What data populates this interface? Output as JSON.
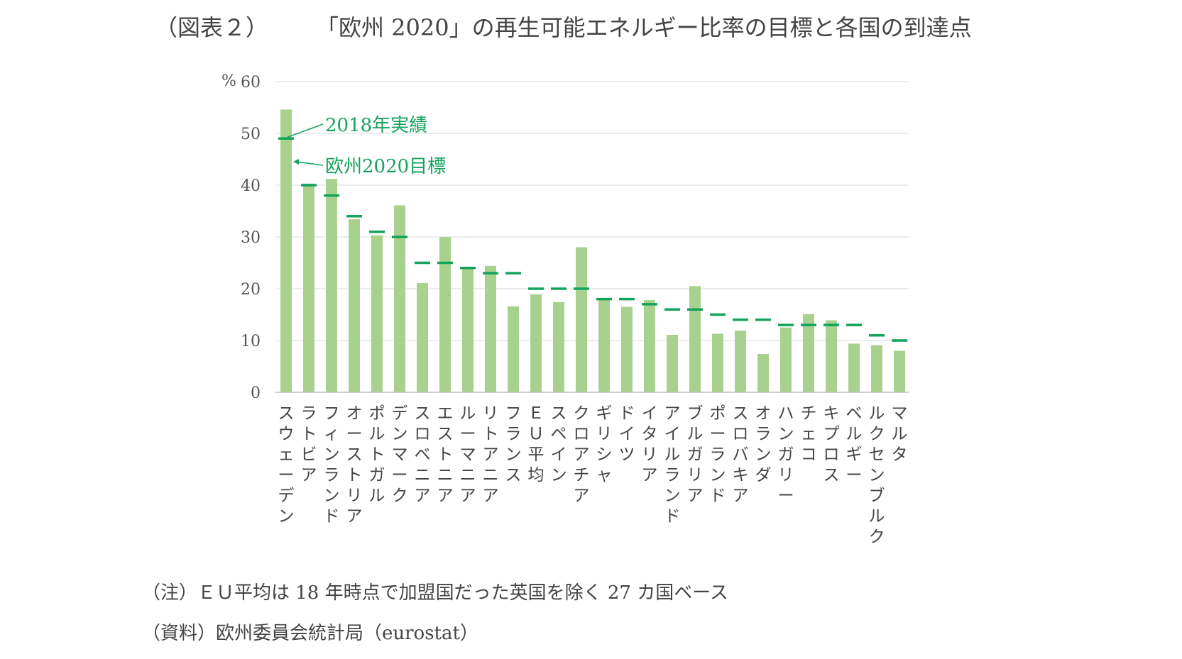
{
  "figure_label": "（図表２）",
  "title": "「欧州 2020」の再生可能エネルギー比率の目標と各国の到達点",
  "notes": {
    "note": "（注）ＥＵ平均は 18 年時点で加盟国だった英国を除く 27 カ国ベース",
    "source": "（資料）欧州委員会統計局（eurostat）"
  },
  "chart_data": {
    "type": "bar",
    "title": "「欧州 2020」の再生可能エネルギー比率の目標と各国の到達点",
    "ylabel": "%",
    "ylim": [
      0,
      60
    ],
    "yticks": [
      0,
      10,
      20,
      30,
      40,
      50,
      60
    ],
    "grid": true,
    "categories": [
      "スウェーデン",
      "ラトビア",
      "フィンランド",
      "オーストリア",
      "ポルトガル",
      "デンマーク",
      "スロベニア",
      "エストニア",
      "ルーマニア",
      "リトアニア",
      "フランス",
      "ＥＵ平均",
      "スペイン",
      "クロアチア",
      "ギリシャ",
      "ドイツ",
      "イタリア",
      "アイルランド",
      "ブルガリア",
      "ポーランド",
      "スロバキア",
      "オランダ",
      "ハンガリー",
      "チェコ",
      "キプロス",
      "ベルギー",
      "ルクセンブルク",
      "マルタ"
    ],
    "series": [
      {
        "name": "2018年実績",
        "kind": "bar",
        "color": "#a9d18e",
        "values": [
          54.6,
          40.3,
          41.2,
          33.4,
          30.3,
          36.1,
          21.1,
          30.0,
          23.9,
          24.4,
          16.6,
          18.9,
          17.4,
          28.0,
          18.0,
          16.5,
          17.8,
          11.1,
          20.5,
          11.3,
          11.9,
          7.4,
          12.5,
          15.1,
          13.9,
          9.4,
          9.1,
          8.0
        ]
      },
      {
        "name": "欧州2020目標",
        "kind": "target-dash",
        "color": "#13a35a",
        "values": [
          49,
          40,
          38,
          34,
          31,
          30,
          25,
          25,
          24,
          23,
          23,
          20,
          20,
          20,
          18,
          18,
          17,
          16,
          16,
          15,
          14,
          14,
          13,
          13,
          13,
          13,
          11,
          10
        ]
      }
    ],
    "annotations": [
      {
        "text": "2018年実績",
        "target_series": "2018年実績",
        "category": "スウェーデン"
      },
      {
        "text": "欧州2020目標",
        "target_series": "欧州2020目標",
        "category": "スウェーデン"
      }
    ]
  }
}
